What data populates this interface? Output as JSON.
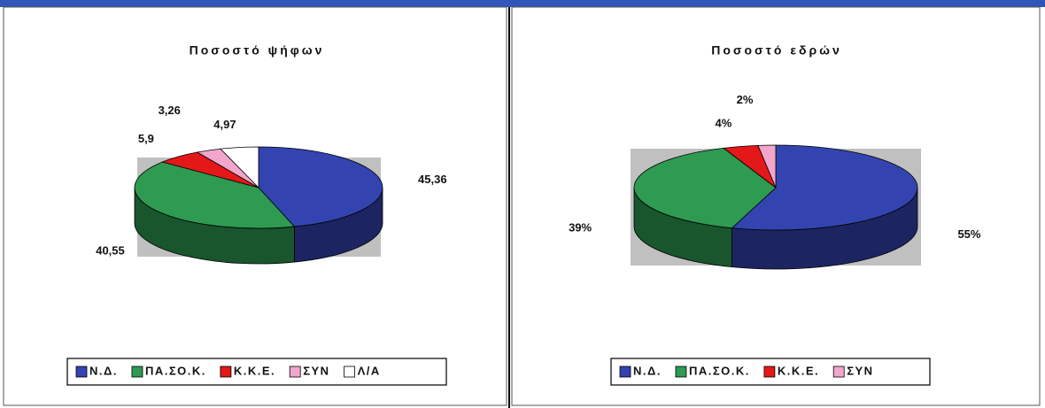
{
  "chart_data": [
    {
      "type": "pie",
      "title": "Ποσοστό ψήφων",
      "categories": [
        "Ν.Δ.",
        "ΠΑ.ΣΟ.Κ.",
        "Κ.Κ.Ε.",
        "ΣΥΝ",
        "Λ/Α"
      ],
      "values": [
        45.36,
        40.55,
        5.9,
        3.26,
        4.97
      ],
      "value_labels": [
        "45,36",
        "40,55",
        "5,9",
        "3,26",
        "4,97"
      ],
      "colors": [
        "#3344b0",
        "#2e9a52",
        "#e41818",
        "#f2a6cc",
        "#ffffff"
      ],
      "legend": "bottom"
    },
    {
      "type": "pie",
      "title": "Ποσοστό εδρών",
      "categories": [
        "Ν.Δ.",
        "ΠΑ.ΣΟ.Κ.",
        "Κ.Κ.Ε.",
        "ΣΥΝ"
      ],
      "values": [
        55,
        39,
        4,
        2
      ],
      "value_labels": [
        "55%",
        "39%",
        "4%",
        "2%"
      ],
      "colors": [
        "#3344b0",
        "#2e9a52",
        "#e41818",
        "#f2a6cc"
      ],
      "legend": "bottom"
    }
  ]
}
